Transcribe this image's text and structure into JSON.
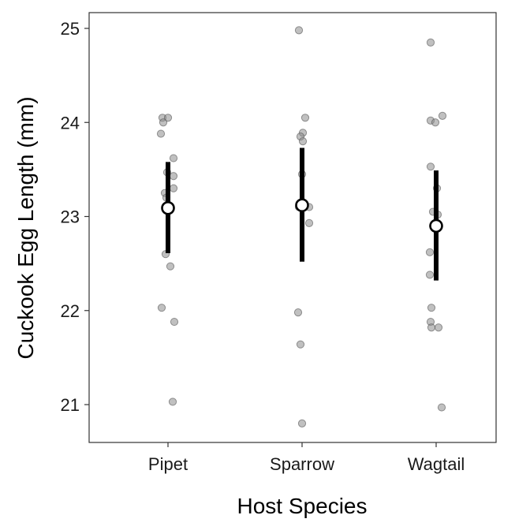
{
  "chart_data": {
    "type": "scatter",
    "xlabel": "Host Species",
    "ylabel": "Cuckook Egg Length (mm)",
    "categories": [
      "Pipet",
      "Sparrow",
      "Wagtail"
    ],
    "ylim": [
      20.6,
      25.2
    ],
    "yticks": [
      21,
      22,
      23,
      24,
      25
    ],
    "grid": false,
    "points": [
      [
        24.05,
        24.05,
        24.0,
        23.88,
        23.62,
        23.47,
        23.43,
        23.3,
        23.25,
        23.2,
        22.6,
        22.47,
        22.03,
        21.88,
        21.03
      ],
      [
        24.98,
        24.05,
        23.89,
        23.85,
        23.8,
        23.45,
        23.1,
        23.1,
        23.1,
        22.93,
        21.98,
        21.64,
        20.8
      ],
      [
        24.85,
        24.07,
        24.02,
        24.0,
        23.53,
        23.3,
        23.05,
        23.02,
        22.62,
        22.38,
        22.03,
        21.88,
        21.82,
        21.82,
        20.97
      ]
    ],
    "means": [
      23.09,
      23.12,
      22.9
    ],
    "intervals": [
      [
        22.61,
        23.58
      ],
      [
        22.52,
        23.73
      ],
      [
        22.32,
        23.49
      ]
    ],
    "colors": {
      "points": "#8c8c8c",
      "interval": "#000000",
      "mean_fill": "#ffffff",
      "mean_stroke": "#000000"
    }
  }
}
